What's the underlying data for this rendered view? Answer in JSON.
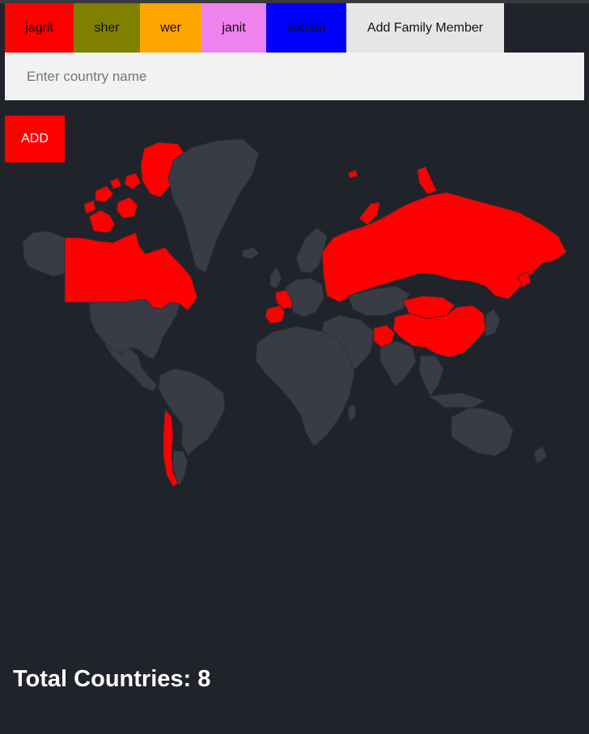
{
  "family_tabs": [
    {
      "label": "jagrit",
      "color": "#ff0000"
    },
    {
      "label": "sher",
      "color": "#808000"
    },
    {
      "label": "wer",
      "color": "#ffa500"
    },
    {
      "label": "janit",
      "color": "#ee82ee"
    },
    {
      "label": "soham",
      "color": "#0000ff"
    }
  ],
  "add_member": {
    "label": "Add Family Member",
    "color": "#e6e6e6"
  },
  "country_input": {
    "placeholder": "Enter country name",
    "value": ""
  },
  "add_button": {
    "label": "ADD",
    "color": "#ff0000"
  },
  "map": {
    "land_color": "#393c45",
    "border_color": "#2a2c34",
    "highlight_color": "#ff0000",
    "highlighted_countries": [
      "canada",
      "russia",
      "china",
      "france",
      "spain",
      "chile",
      "afghanistan",
      "mongolia"
    ]
  },
  "total": {
    "label": "Total Countries:",
    "count": "8"
  }
}
